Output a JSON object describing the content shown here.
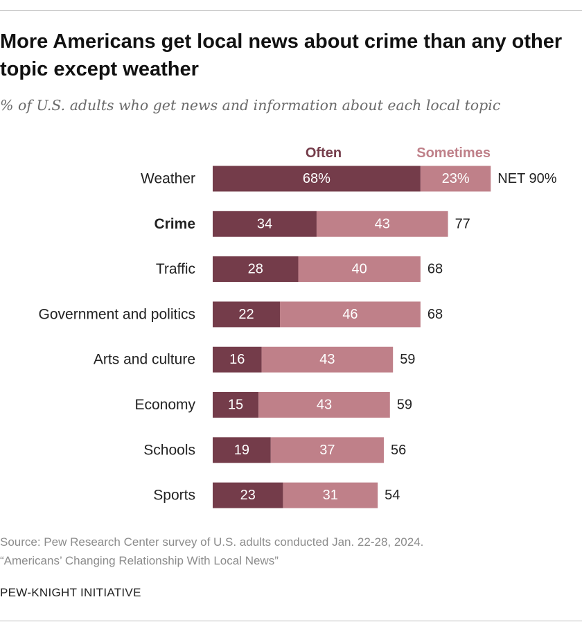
{
  "title": "More Americans get local news about crime than any other topic except weather",
  "subtitle": "% of U.S. adults who get news and information about each local topic",
  "chart_data": {
    "type": "bar",
    "orientation": "horizontal",
    "stacked": true,
    "categories": [
      "Weather",
      "Crime",
      "Traffic",
      "Government and politics",
      "Arts and culture",
      "Economy",
      "Schools",
      "Sports"
    ],
    "highlight_category": "Crime",
    "series": [
      {
        "name": "Often",
        "color": "#743c4a",
        "values": [
          68,
          34,
          28,
          22,
          16,
          15,
          19,
          23
        ],
        "labels": [
          "68%",
          "34",
          "28",
          "22",
          "16",
          "15",
          "19",
          "23"
        ]
      },
      {
        "name": "Sometimes",
        "color": "#bf8089",
        "values": [
          23,
          43,
          40,
          46,
          43,
          43,
          37,
          31
        ],
        "labels": [
          "23%",
          "43",
          "40",
          "46",
          "43",
          "43",
          "37",
          "31"
        ]
      }
    ],
    "net": {
      "values": [
        90,
        77,
        68,
        68,
        59,
        59,
        56,
        54
      ],
      "labels": [
        "NET 90%",
        "77",
        "68",
        "68",
        "59",
        "59",
        "56",
        "54"
      ]
    },
    "legend_position": "top",
    "grid": false
  },
  "source": {
    "line1": "Source: Pew Research Center survey of U.S. adults conducted Jan. 22-28, 2024.",
    "line2": "“Americans’ Changing Relationship With Local News”"
  },
  "brand": "PEW-KNIGHT INITIATIVE"
}
